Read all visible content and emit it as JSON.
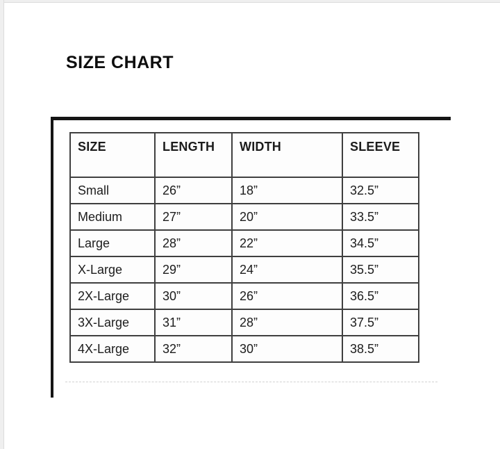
{
  "page": {
    "title": "SIZE CHART"
  },
  "size_chart": {
    "columns": [
      "SIZE",
      "LENGTH",
      "WIDTH",
      "SLEEVE"
    ],
    "rows": [
      {
        "size": "Small",
        "length": "26”",
        "width": "18”",
        "sleeve": "32.5”"
      },
      {
        "size": "Medium",
        "length": "27”",
        "width": "20”",
        "sleeve": "33.5”"
      },
      {
        "size": "Large",
        "length": "28”",
        "width": "22”",
        "sleeve": "34.5”"
      },
      {
        "size": "X-Large",
        "length": "29”",
        "width": "24”",
        "sleeve": "35.5”"
      },
      {
        "size": "2X-Large",
        "length": "30”",
        "width": "26”",
        "sleeve": "36.5”"
      },
      {
        "size": "3X-Large",
        "length": "31”",
        "width": "28”",
        "sleeve": "37.5”"
      },
      {
        "size": "4X-Large",
        "length": "32”",
        "width": "30”",
        "sleeve": "38.5”"
      }
    ]
  },
  "colors": {
    "outer_bg": "#efefef",
    "page_bg": "#ffffff",
    "frame": "#151515",
    "table_border": "#3f3f3f",
    "text": "#1c1c1c"
  }
}
